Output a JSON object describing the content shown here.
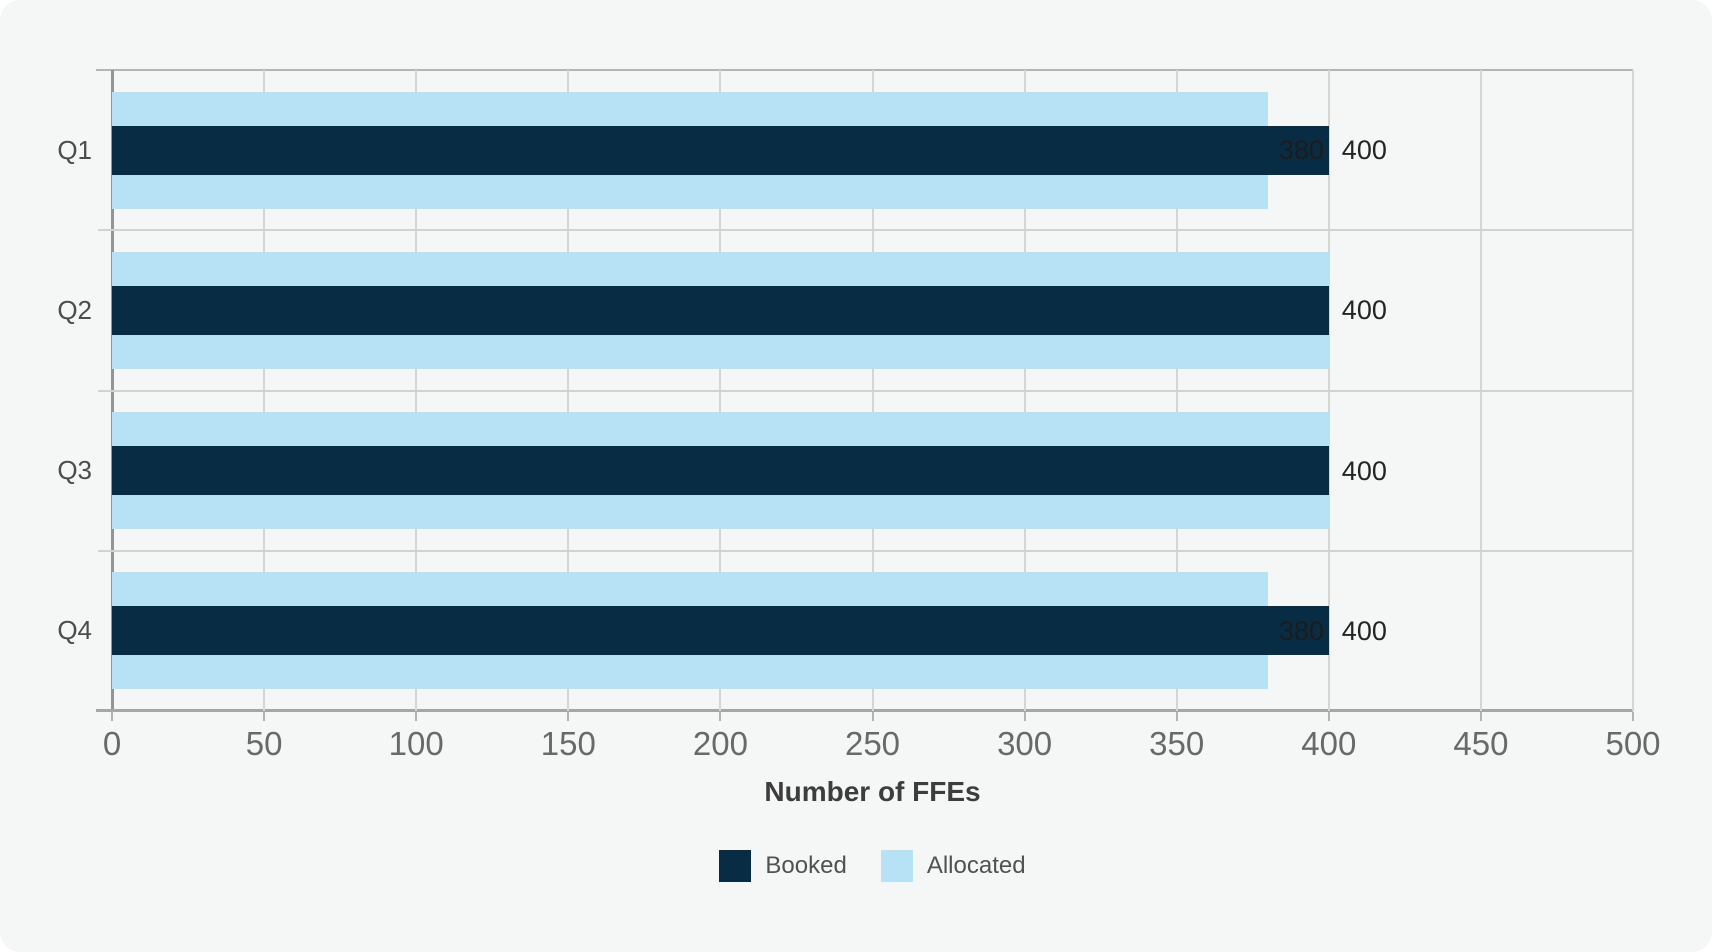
{
  "chart_data": {
    "type": "bar",
    "orientation": "horizontal",
    "bar_layout": "overlapped",
    "title": "",
    "xlabel": "Number of FFEs",
    "ylabel": "",
    "categories": [
      "Q1",
      "Q2",
      "Q3",
      "Q4"
    ],
    "series": [
      {
        "name": "Booked",
        "color": "#082c44",
        "values": [
          400,
          400,
          400,
          400
        ]
      },
      {
        "name": "Allocated",
        "color": "#b7e1f4",
        "values": [
          380,
          400,
          400,
          380
        ]
      }
    ],
    "value_labels": [
      {
        "booked": "400",
        "allocated": "380"
      },
      {
        "booked": "400",
        "allocated": ""
      },
      {
        "booked": "400",
        "allocated": ""
      },
      {
        "booked": "400",
        "allocated": "380"
      }
    ],
    "xlim": [
      0,
      500
    ],
    "xticks": [
      0,
      50,
      100,
      150,
      200,
      250,
      300,
      350,
      400,
      450,
      500
    ],
    "grid": true,
    "legend_position": "bottom"
  },
  "colors": {
    "card_background": "#f5f6f6",
    "booked": "#082c44",
    "allocated": "#b7e1f4",
    "gridline": "#d5d5d5",
    "axis": "#a6a6a6",
    "tick_text": "#696969",
    "value_text": "#242424"
  }
}
